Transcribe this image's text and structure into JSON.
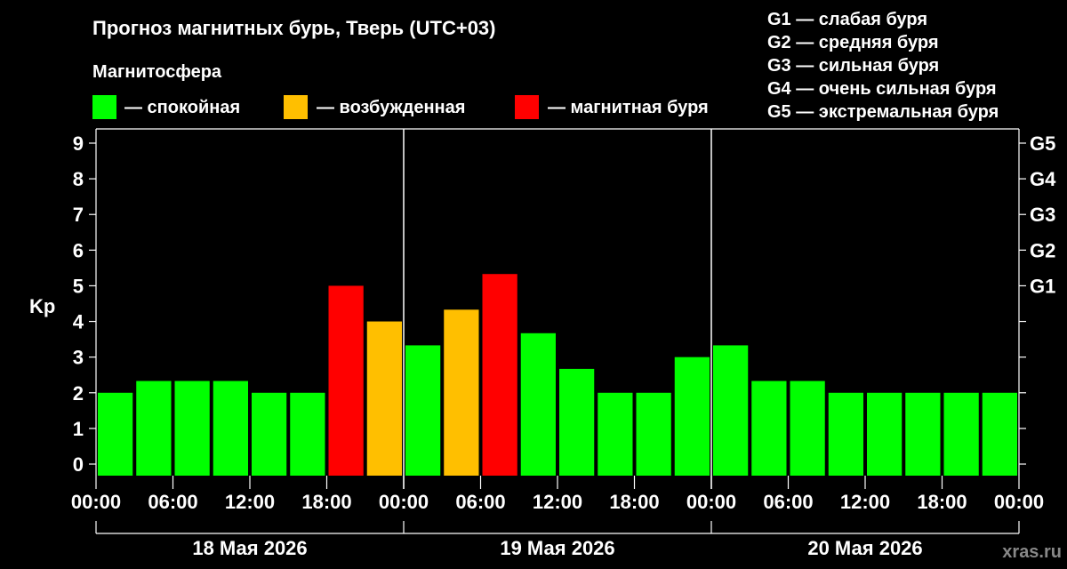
{
  "chart_data": {
    "type": "bar",
    "title": "Прогноз магнитных бурь, Тверь (UTC+03)",
    "legend_title": "Магнитосфера",
    "legend": [
      {
        "label": "— спокойная",
        "color": "#00ff00"
      },
      {
        "label": "— возбужденная",
        "color": "#ffbf00"
      },
      {
        "label": "— магнитная буря",
        "color": "#ff0000"
      }
    ],
    "g_scale": [
      "G1 — слабая буря",
      "G2 — средняя буря",
      "G3 — сильная буря",
      "G4 — очень сильная буря",
      "G5 — экстремальная буря"
    ],
    "ylabel": "Kp",
    "ylim": [
      0,
      9
    ],
    "yticks": [
      "0",
      "1",
      "2",
      "3",
      "4",
      "5",
      "6",
      "7",
      "8",
      "9"
    ],
    "right_ticks": [
      {
        "value": 5,
        "label": "G1"
      },
      {
        "value": 6,
        "label": "G2"
      },
      {
        "value": 7,
        "label": "G3"
      },
      {
        "value": 8,
        "label": "G4"
      },
      {
        "value": 9,
        "label": "G5"
      }
    ],
    "xtick_labels": [
      "00:00",
      "06:00",
      "12:00",
      "18:00",
      "00:00",
      "06:00",
      "12:00",
      "18:00",
      "00:00",
      "06:00",
      "12:00",
      "18:00",
      "00:00"
    ],
    "days": [
      "18 Мая 2026",
      "19 Мая 2026",
      "20 Мая 2026"
    ],
    "values": [
      2,
      2.33,
      2.33,
      2.33,
      2,
      2,
      5,
      4,
      3.33,
      4.33,
      5.33,
      3.67,
      2.67,
      2,
      2,
      3,
      3.33,
      2.33,
      2.33,
      2,
      2,
      2,
      2,
      2
    ],
    "colors": {
      "quiet": "#00ff00",
      "active": "#ffbf00",
      "storm": "#ff0000"
    },
    "grid": false,
    "legend_position": "top"
  },
  "watermark": "xras.ru"
}
